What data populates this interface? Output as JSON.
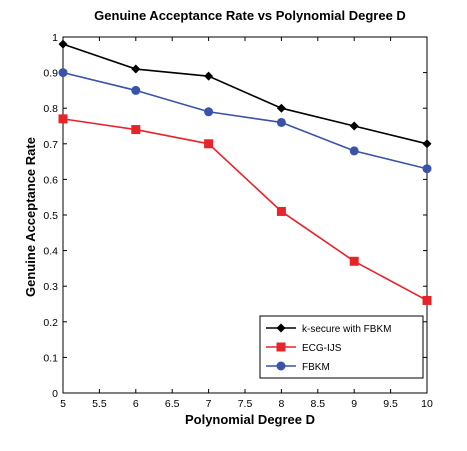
{
  "chart_data": {
    "type": "line",
    "title": "Genuine Acceptance Rate vs Polynomial Degree D",
    "xlabel": "Polynomial Degree D",
    "ylabel": "Genuine Acceptance Rate",
    "xlim": [
      5,
      10
    ],
    "ylim": [
      0,
      1
    ],
    "xticks": [
      5,
      5.5,
      6,
      6.5,
      7,
      7.5,
      8,
      8.5,
      9,
      9.5,
      10
    ],
    "xtick_labels": [
      "5",
      "5.5",
      "6",
      "6.5",
      "7",
      "7.5",
      "8",
      "8.5",
      "9",
      "9.5",
      "10"
    ],
    "yticks": [
      0,
      0.1,
      0.2,
      0.3,
      0.4,
      0.5,
      0.6,
      0.7,
      0.8,
      0.9,
      1
    ],
    "ytick_labels": [
      "0",
      "0.1",
      "0.2",
      "0.3",
      "0.4",
      "0.5",
      "0.6",
      "0.7",
      "0.8",
      "0.9",
      "1"
    ],
    "grid": false,
    "legend_position": "bottom-right",
    "x": [
      5,
      6,
      7,
      8,
      9,
      10
    ],
    "series": [
      {
        "name": "k-secure with FBKM",
        "color": "#000000",
        "marker": "diamond",
        "values": [
          0.98,
          0.91,
          0.89,
          0.8,
          0.75,
          0.7
        ]
      },
      {
        "name": "ECG-IJS",
        "color": "#e8242b",
        "marker": "square",
        "values": [
          0.77,
          0.74,
          0.7,
          0.51,
          0.37,
          0.26
        ]
      },
      {
        "name": "FBKM",
        "color": "#3a52a8",
        "marker": "circle",
        "values": [
          0.9,
          0.85,
          0.79,
          0.76,
          0.68,
          0.63
        ]
      }
    ]
  }
}
